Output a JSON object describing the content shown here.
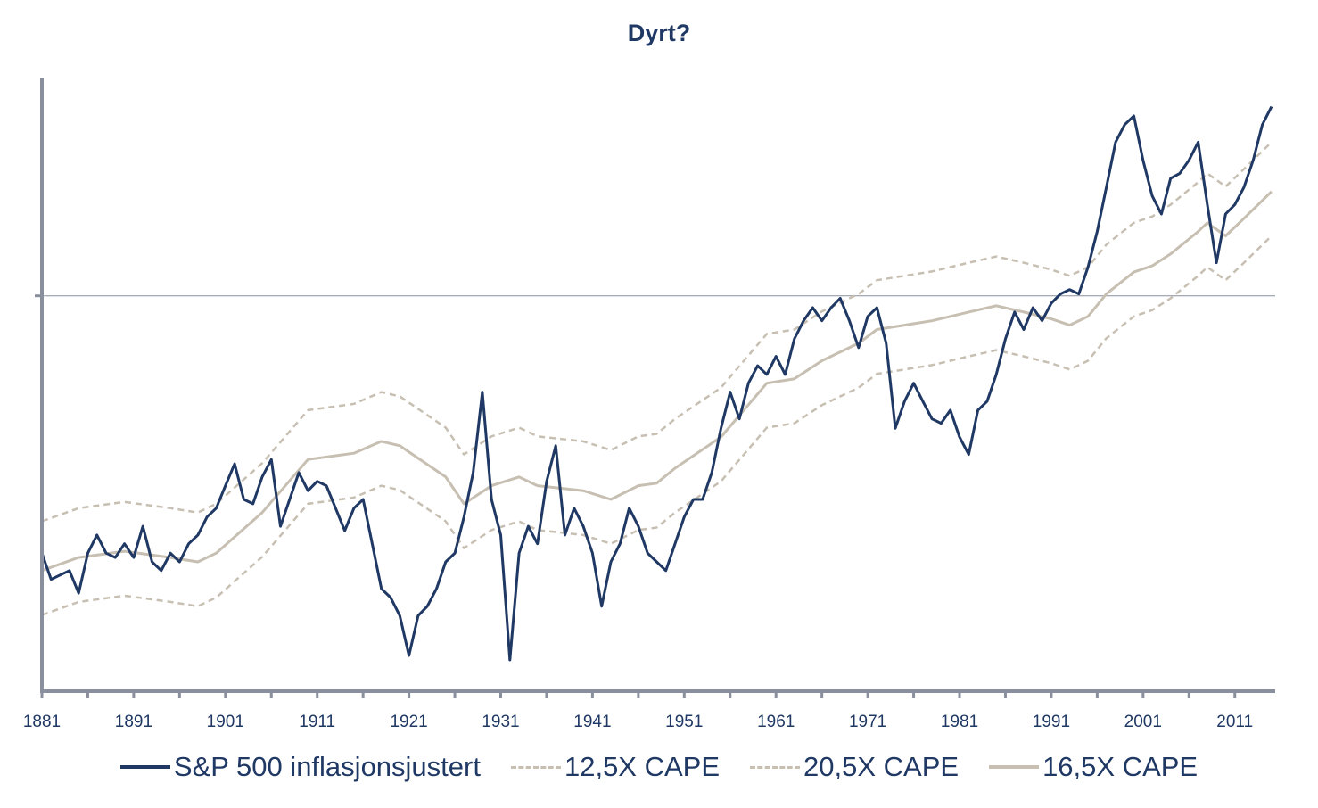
{
  "chart_data": {
    "type": "line",
    "title": "Dyrt?",
    "xlabel": "",
    "ylabel": "",
    "y_scale": "log-index (unlabeled)",
    "xlim": [
      1881,
      2015.4
    ],
    "ylim": [
      0,
      98.1
    ],
    "x_tick_labels": [
      "1881",
      "1891",
      "1901",
      "1911",
      "1921",
      "1931",
      "1941",
      "1951",
      "1961",
      "1971",
      "1981",
      "1991",
      "2001",
      "2011"
    ],
    "reference_line_y": 63.3,
    "grid": false,
    "legend_position": "bottom",
    "colors": {
      "sp500": "#1f3864",
      "cape": "#c7bfb2",
      "axis": "#8a8f9e"
    },
    "series": [
      {
        "name": "S&P 500 inflasjonsjustert",
        "style": "solid-dark",
        "x": [
          1881,
          1882,
          1883,
          1884,
          1885,
          1886,
          1887,
          1888,
          1889,
          1890,
          1891,
          1892,
          1893,
          1894,
          1895,
          1896,
          1897,
          1898,
          1899,
          1900,
          1901,
          1902,
          1903,
          1904,
          1905,
          1906,
          1907,
          1908,
          1909,
          1910,
          1911,
          1912,
          1913,
          1914,
          1915,
          1916,
          1917,
          1918,
          1919,
          1920,
          1921,
          1922,
          1923,
          1924,
          1925,
          1926,
          1927,
          1928,
          1929,
          1930,
          1931,
          1932,
          1933,
          1934,
          1935,
          1936,
          1937,
          1938,
          1939,
          1940,
          1941,
          1942,
          1943,
          1944,
          1945,
          1946,
          1947,
          1948,
          1949,
          1950,
          1951,
          1952,
          1953,
          1954,
          1955,
          1956,
          1957,
          1958,
          1959,
          1960,
          1961,
          1962,
          1963,
          1964,
          1965,
          1966,
          1967,
          1968,
          1969,
          1970,
          1971,
          1972,
          1973,
          1974,
          1975,
          1976,
          1977,
          1978,
          1979,
          1980,
          1981,
          1982,
          1983,
          1984,
          1985,
          1986,
          1987,
          1988,
          1989,
          1990,
          1991,
          1992,
          1993,
          1994,
          1995,
          1996,
          1997,
          1998,
          1999,
          2000,
          2001,
          2002,
          2003,
          2004,
          2005,
          2006,
          2007,
          2008,
          2009,
          2010,
          2011,
          2012,
          2013,
          2014,
          2015
        ],
        "y": [
          22.1,
          17.9,
          18.6,
          19.3,
          15.7,
          22.1,
          25,
          22.1,
          21.4,
          23.6,
          21.4,
          26.4,
          20.7,
          19.3,
          22.1,
          20.7,
          23.6,
          25,
          27.9,
          29.3,
          32.9,
          36.4,
          30.7,
          30,
          34.3,
          37.1,
          26.4,
          30.7,
          35,
          32.1,
          33.6,
          32.9,
          29.3,
          25.7,
          29.3,
          30.7,
          23.6,
          16.4,
          15,
          12.1,
          5.7,
          12.1,
          13.6,
          16.4,
          20.7,
          22.1,
          27.9,
          35,
          47.9,
          30.7,
          25,
          5,
          22.1,
          26.4,
          23.6,
          33.6,
          39.3,
          25,
          29.3,
          26.4,
          22.1,
          13.6,
          20.7,
          23.6,
          29.3,
          26.4,
          22.1,
          20.7,
          19.3,
          23.6,
          27.9,
          30.7,
          30.7,
          35,
          42.1,
          47.9,
          43.6,
          49.3,
          52.1,
          50.7,
          53.6,
          50.7,
          56.4,
          59.3,
          61.4,
          59.3,
          61.4,
          62.9,
          59.3,
          55,
          60,
          61.4,
          55.7,
          42.1,
          46.4,
          49.3,
          46.4,
          43.6,
          42.9,
          45,
          40.7,
          37.9,
          45,
          46.4,
          50.7,
          56.4,
          60.7,
          57.9,
          61.4,
          59.3,
          62.1,
          63.6,
          64.3,
          63.6,
          67.9,
          73.6,
          80.7,
          87.9,
          90.7,
          92.1,
          85,
          79.3,
          76.4,
          82.1,
          82.9,
          85,
          87.9,
          77.9,
          68.6,
          76.4,
          77.9,
          80.7,
          85,
          90.7,
          93.6
        ]
      },
      {
        "name": "12,5X CAPE",
        "style": "dashed",
        "x": [
          1881,
          1885,
          1890,
          1895,
          1898,
          1900,
          1905,
          1910,
          1915,
          1918,
          1920,
          1925,
          1927,
          1930,
          1933,
          1935,
          1940,
          1943,
          1946,
          1948,
          1950,
          1955,
          1960,
          1963,
          1966,
          1970,
          1972,
          1975,
          1978,
          1982,
          1985,
          1988,
          1991,
          1993,
          1995,
          1997,
          2000,
          2002,
          2004,
          2007,
          2008,
          2010,
          2012,
          2015
        ],
        "y": [
          12.2,
          14.3,
          15.3,
          14.3,
          13.6,
          15,
          21.5,
          30,
          31,
          32.9,
          32.2,
          27.2,
          22.9,
          25.8,
          27.2,
          25.8,
          25,
          23.6,
          25.8,
          26.2,
          28.6,
          33.6,
          42.2,
          42.9,
          45.8,
          48.6,
          50.8,
          51.5,
          52.2,
          53.6,
          54.6,
          53.6,
          52.5,
          51.5,
          52.9,
          56.5,
          60,
          61,
          62.9,
          66.5,
          67.9,
          65.8,
          68.6,
          72.9
        ]
      },
      {
        "name": "20,5X CAPE",
        "style": "dashed",
        "x": [
          1881,
          1885,
          1890,
          1895,
          1898,
          1900,
          1905,
          1910,
          1915,
          1918,
          1920,
          1925,
          1927,
          1930,
          1933,
          1935,
          1940,
          1943,
          1946,
          1948,
          1950,
          1955,
          1960,
          1963,
          1966,
          1970,
          1972,
          1975,
          1978,
          1982,
          1985,
          1988,
          1991,
          1993,
          1995,
          1997,
          2000,
          2002,
          2004,
          2007,
          2008,
          2010,
          2012,
          2015
        ],
        "y": [
          27.2,
          29.3,
          30.3,
          29.3,
          28.6,
          30,
          36.5,
          45,
          46,
          47.9,
          47.2,
          42.2,
          37.9,
          40.8,
          42.2,
          40.8,
          40,
          38.6,
          40.8,
          41.2,
          43.6,
          48.6,
          57.2,
          57.9,
          60.8,
          63.6,
          65.8,
          66.5,
          67.2,
          68.6,
          69.6,
          68.6,
          67.5,
          66.5,
          67.9,
          71.5,
          75,
          76,
          77.9,
          81.5,
          82.9,
          80.8,
          83.6,
          87.9
        ]
      },
      {
        "name": "16,5X CAPE",
        "style": "solid-light",
        "x": [
          1881,
          1885,
          1890,
          1895,
          1898,
          1900,
          1905,
          1910,
          1915,
          1918,
          1920,
          1925,
          1927,
          1930,
          1933,
          1935,
          1940,
          1943,
          1946,
          1948,
          1950,
          1955,
          1960,
          1963,
          1966,
          1970,
          1972,
          1975,
          1978,
          1982,
          1985,
          1988,
          1991,
          1993,
          1995,
          1997,
          2000,
          2002,
          2004,
          2007,
          2008,
          2010,
          2012,
          2015
        ],
        "y": [
          19.3,
          21.4,
          22.4,
          21.4,
          20.7,
          22.1,
          28.6,
          37.1,
          38.1,
          40,
          39.3,
          34.3,
          30,
          32.9,
          34.3,
          32.9,
          32.1,
          30.7,
          32.9,
          33.3,
          35.7,
          40.7,
          49.3,
          50,
          52.9,
          55.7,
          57.9,
          58.6,
          59.3,
          60.7,
          61.7,
          60.7,
          59.6,
          58.6,
          60,
          63.6,
          67.1,
          68.1,
          70,
          73.6,
          75,
          72.9,
          75.7,
          80
        ]
      }
    ]
  }
}
